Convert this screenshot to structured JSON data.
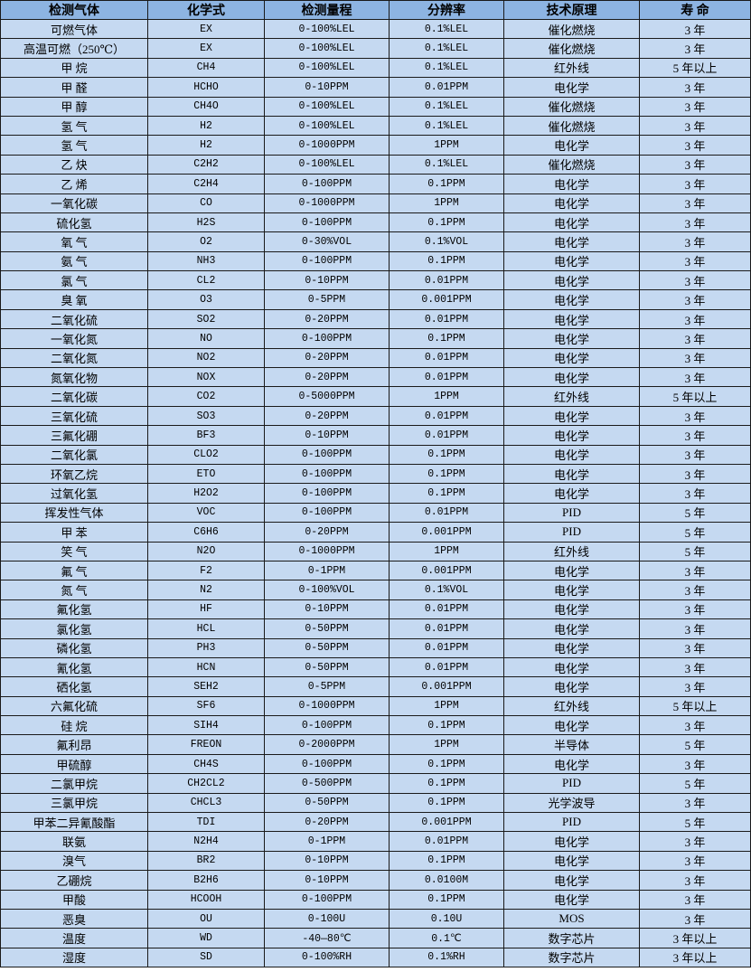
{
  "table": {
    "headers": [
      "检测气体",
      "化学式",
      "检测量程",
      "分辨率",
      "技术原理",
      "寿  命"
    ],
    "rows": [
      [
        "可燃气体",
        "EX",
        "0-100%LEL",
        "0.1%LEL",
        "催化燃烧",
        "3 年"
      ],
      [
        "高温可燃（250℃）",
        "EX",
        "0-100%LEL",
        "0.1%LEL",
        "催化燃烧",
        "3 年"
      ],
      [
        "甲 烷",
        "CH4",
        "0-100%LEL",
        "0.1%LEL",
        "红外线",
        "5 年以上"
      ],
      [
        "甲 醛",
        "HCHO",
        "0-10PPM",
        "0.01PPM",
        "电化学",
        "3 年"
      ],
      [
        "甲 醇",
        "CH4O",
        "0-100%LEL",
        "0.1%LEL",
        "催化燃烧",
        "3 年"
      ],
      [
        "氢 气",
        "H2",
        "0-100%LEL",
        "0.1%LEL",
        "催化燃烧",
        "3 年"
      ],
      [
        "氢 气",
        "H2",
        "0-1000PPM",
        "1PPM",
        "电化学",
        "3 年"
      ],
      [
        "乙 炔",
        "C2H2",
        "0-100%LEL",
        "0.1%LEL",
        "催化燃烧",
        "3 年"
      ],
      [
        "乙 烯",
        "C2H4",
        "0-100PPM",
        "0.1PPM",
        "电化学",
        "3 年"
      ],
      [
        "一氧化碳",
        "CO",
        "0-1000PPM",
        "1PPM",
        "电化学",
        "3 年"
      ],
      [
        "硫化氢",
        "H2S",
        "0-100PPM",
        "0.1PPM",
        "电化学",
        "3 年"
      ],
      [
        "氧 气",
        "O2",
        "0-30%VOL",
        "0.1%VOL",
        "电化学",
        "3 年"
      ],
      [
        "氨 气",
        "NH3",
        "0-100PPM",
        "0.1PPM",
        "电化学",
        "3 年"
      ],
      [
        "氯 气",
        "CL2",
        "0-10PPM",
        "0.01PPM",
        "电化学",
        "3 年"
      ],
      [
        "臭 氧",
        "O3",
        "0-5PPM",
        "0.001PPM",
        "电化学",
        "3 年"
      ],
      [
        "二氧化硫",
        "SO2",
        "0-20PPM",
        "0.01PPM",
        "电化学",
        "3 年"
      ],
      [
        "一氧化氮",
        "NO",
        "0-100PPM",
        "0.1PPM",
        "电化学",
        "3 年"
      ],
      [
        "二氧化氮",
        "NO2",
        "0-20PPM",
        "0.01PPM",
        "电化学",
        "3 年"
      ],
      [
        "氮氧化物",
        "NOX",
        "0-20PPM",
        "0.01PPM",
        "电化学",
        "3 年"
      ],
      [
        "二氧化碳",
        "CO2",
        "0-5000PPM",
        "1PPM",
        "红外线",
        "5 年以上"
      ],
      [
        "三氧化硫",
        "SO3",
        "0-20PPM",
        "0.01PPM",
        "电化学",
        "3 年"
      ],
      [
        "三氟化硼",
        "BF3",
        "0-10PPM",
        "0.01PPM",
        "电化学",
        "3 年"
      ],
      [
        "二氧化氯",
        "CLO2",
        "0-100PPM",
        "0.1PPM",
        "电化学",
        "3 年"
      ],
      [
        "环氧乙烷",
        "ETO",
        "0-100PPM",
        "0.1PPM",
        "电化学",
        "3 年"
      ],
      [
        "过氧化氢",
        "H2O2",
        "0-100PPM",
        "0.1PPM",
        "电化学",
        "3 年"
      ],
      [
        "挥发性气体",
        "VOC",
        "0-100PPM",
        "0.01PPM",
        "PID",
        "5 年"
      ],
      [
        "甲 苯",
        "C6H6",
        "0-20PPM",
        "0.001PPM",
        "PID",
        "5 年"
      ],
      [
        "笑 气",
        "N2O",
        "0-1000PPM",
        "1PPM",
        "红外线",
        "5 年"
      ],
      [
        "氟 气",
        "F2",
        "0-1PPM",
        "0.001PPM",
        "电化学",
        "3 年"
      ],
      [
        "氮 气",
        "N2",
        "0-100%VOL",
        "0.1%VOL",
        "电化学",
        "3 年"
      ],
      [
        "氟化氢",
        "HF",
        "0-10PPM",
        "0.01PPM",
        "电化学",
        "3 年"
      ],
      [
        "氯化氢",
        "HCL",
        "0-50PPM",
        "0.01PPM",
        "电化学",
        "3 年"
      ],
      [
        "磷化氢",
        "PH3",
        "0-50PPM",
        "0.01PPM",
        "电化学",
        "3 年"
      ],
      [
        "氰化氢",
        "HCN",
        "0-50PPM",
        "0.01PPM",
        "电化学",
        "3 年"
      ],
      [
        "硒化氢",
        "SEH2",
        "0-5PPM",
        "0.001PPM",
        "电化学",
        "3 年"
      ],
      [
        "六氟化硫",
        "SF6",
        "0-1000PPM",
        "1PPM",
        "红外线",
        "5 年以上"
      ],
      [
        "硅 烷",
        "SIH4",
        "0-100PPM",
        "0.1PPM",
        "电化学",
        "3 年"
      ],
      [
        "氟利昂",
        "FREON",
        "0-2000PPM",
        "1PPM",
        "半导体",
        "5 年"
      ],
      [
        "甲硫醇",
        "CH4S",
        "0-100PPM",
        "0.1PPM",
        "电化学",
        "3 年"
      ],
      [
        "二氯甲烷",
        "CH2CL2",
        "0-500PPM",
        "0.1PPM",
        "PID",
        "5 年"
      ],
      [
        "三氯甲烷",
        "CHCL3",
        "0-50PPM",
        "0.1PPM",
        "光学波导",
        "3 年"
      ],
      [
        "甲苯二异氰酸酯",
        "TDI",
        "0-20PPM",
        "0.001PPM",
        "PID",
        "5 年"
      ],
      [
        "联氨",
        "N2H4",
        "0-1PPM",
        "0.01PPM",
        "电化学",
        "3 年"
      ],
      [
        "溴气",
        "BR2",
        "0-10PPM",
        "0.1PPM",
        "电化学",
        "3 年"
      ],
      [
        "乙硼烷",
        "B2H6",
        "0-10PPM",
        "0.0100M",
        "电化学",
        "3 年"
      ],
      [
        "甲酸",
        "HCOOH",
        "0-100PPM",
        "0.1PPM",
        "电化学",
        "3 年"
      ],
      [
        "恶臭",
        "OU",
        "0-100U",
        "0.10U",
        "MOS",
        "3 年"
      ],
      [
        "温度",
        "WD",
        "-40—80℃",
        "0.1℃",
        "数字芯片",
        "3 年以上"
      ],
      [
        "湿度",
        "SD",
        "0-100%RH",
        "0.1%RH",
        "数字芯片",
        "3 年以上"
      ]
    ]
  },
  "colors": {
    "header_bg": "#8db4e2",
    "row_bg": "#c5d9f1",
    "border": "#1a1a1a"
  }
}
